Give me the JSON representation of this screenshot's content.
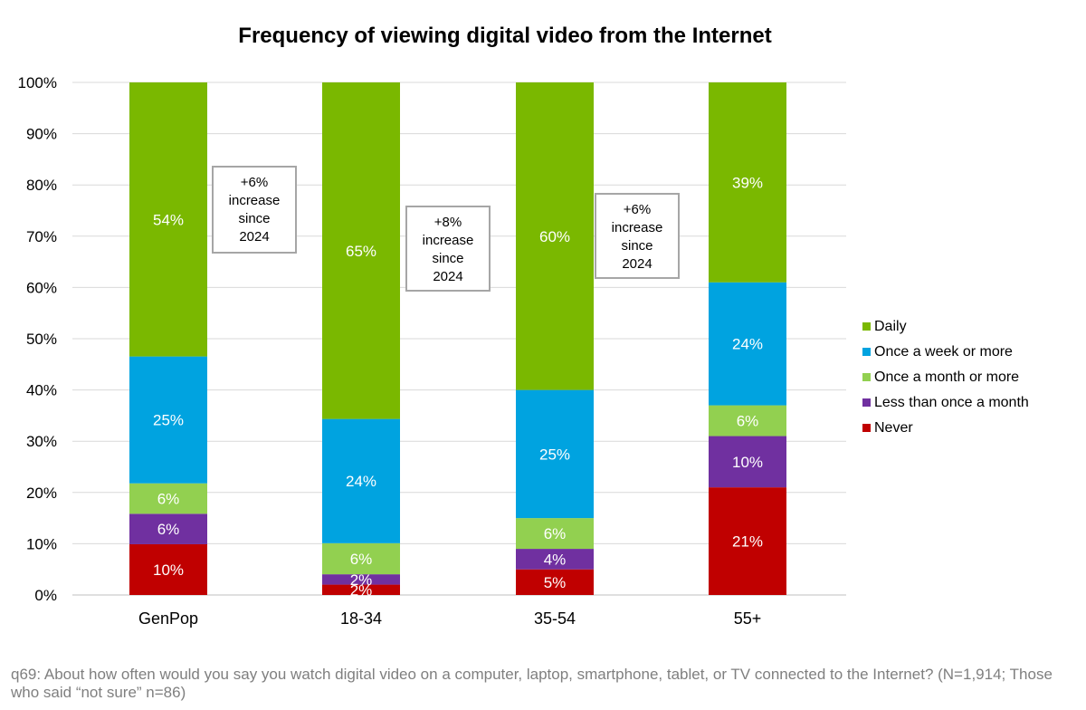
{
  "chart_data": {
    "type": "bar",
    "stacked": true,
    "title": "Frequency of viewing digital video from the Internet",
    "categories": [
      "GenPop",
      "18-34",
      "35-54",
      "55+"
    ],
    "ylim": [
      0,
      100
    ],
    "yticks": [
      "0%",
      "10%",
      "20%",
      "30%",
      "40%",
      "50%",
      "60%",
      "70%",
      "80%",
      "90%",
      "100%"
    ],
    "grid": true,
    "legend_position": "right",
    "series": [
      {
        "name": "Never",
        "color": "#c00000",
        "values": [
          10,
          2,
          5,
          21
        ],
        "labels": [
          "10%",
          "2%",
          "5%",
          "21%"
        ]
      },
      {
        "name": "Less than once a month",
        "color": "#7030a0",
        "values": [
          6,
          2,
          4,
          10
        ],
        "labels": [
          "6%",
          "2%",
          "4%",
          "10%"
        ]
      },
      {
        "name": "Once a month or more",
        "color": "#92d050",
        "values": [
          6,
          6,
          6,
          6
        ],
        "labels": [
          "6%",
          "6%",
          "6%",
          "6%"
        ]
      },
      {
        "name": "Once a week or more",
        "color": "#00a3e0",
        "values": [
          25,
          24,
          25,
          24
        ],
        "labels": [
          "25%",
          "24%",
          "25%",
          "24%"
        ]
      },
      {
        "name": "Daily",
        "color": "#7ab800",
        "values": [
          54,
          65,
          60,
          39
        ],
        "labels": [
          "54%",
          "65%",
          "60%",
          "39%"
        ]
      }
    ],
    "annotations": [
      {
        "category": "GenPop",
        "lines": [
          "+6%",
          "increase",
          "since",
          "2024"
        ]
      },
      {
        "category": "18-34",
        "lines": [
          "+8%",
          "increase",
          "since",
          "2024"
        ]
      },
      {
        "category": "35-54",
        "lines": [
          "+6%",
          "increase",
          "since",
          "2024"
        ]
      }
    ]
  },
  "footnote": "q69: About how often would you say you watch digital video on a computer, laptop, smartphone, tablet, or TV connected to the Internet? (N=1,914; Those who said “not sure” n=86)"
}
